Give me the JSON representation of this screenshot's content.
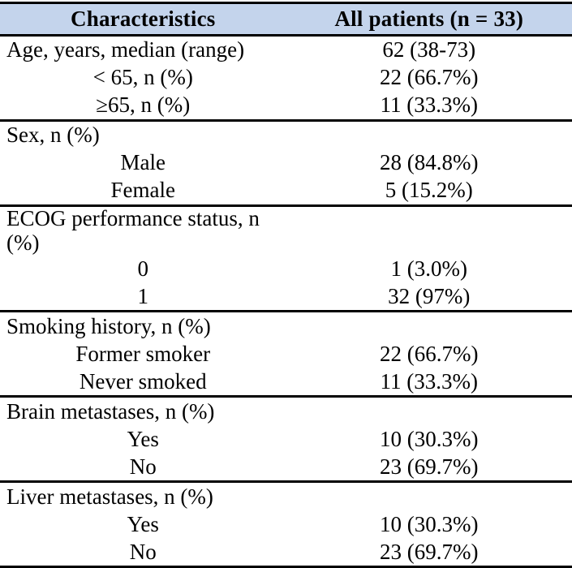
{
  "table": {
    "header": {
      "characteristics": "Characteristics",
      "all_patients": "All patients (n = 33)"
    },
    "rows": [
      {
        "label": "Age, years, median (range)",
        "value": "62 (38-73)"
      },
      {
        "label": "< 65, n (%)",
        "value": "22 (66.7%)"
      },
      {
        "label": "≥65, n (%)",
        "value": "11 (33.3%)"
      },
      {
        "label": "Sex, n (%)",
        "value": ""
      },
      {
        "label": "Male",
        "value": "28 (84.8%)"
      },
      {
        "label": "Female",
        "value": "5 (15.2%)"
      },
      {
        "label": "ECOG performance status, n (%)",
        "value": ""
      },
      {
        "label": "0",
        "value": "1 (3.0%)"
      },
      {
        "label": "1",
        "value": "32 (97%)"
      },
      {
        "label": "Smoking history, n (%)",
        "value": ""
      },
      {
        "label": "Former smoker",
        "value": "22 (66.7%)"
      },
      {
        "label": "Never smoked",
        "value": "11 (33.3%)"
      },
      {
        "label": "Brain metastases, n (%)",
        "value": ""
      },
      {
        "label": "Yes",
        "value": "10 (30.3%)"
      },
      {
        "label": "No",
        "value": "23 (69.7%)"
      },
      {
        "label": "Liver metastases, n (%)",
        "value": ""
      },
      {
        "label": "Yes",
        "value": "10 (30.3%)"
      },
      {
        "label": "No",
        "value": "23 (69.7%)"
      }
    ],
    "colors": {
      "header_bg": "#c4d4ec",
      "border": "#000000",
      "text": "#000000"
    }
  }
}
